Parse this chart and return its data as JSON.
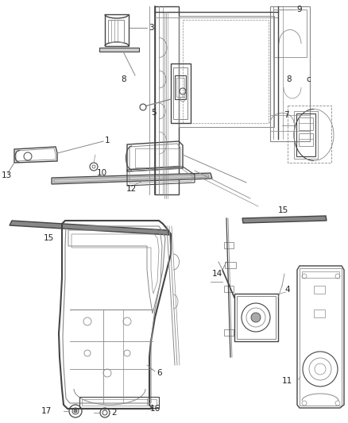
{
  "background_color": "#f5f5f5",
  "line_color": "#888888",
  "dark_line": "#444444",
  "text_color": "#222222",
  "label_fontsize": 7.5,
  "fig_width": 4.38,
  "fig_height": 5.33,
  "dpi": 100
}
